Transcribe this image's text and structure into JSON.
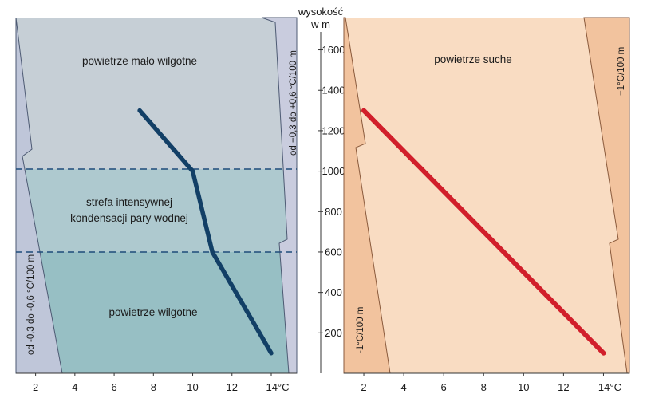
{
  "axis": {
    "y_title": "wysokość",
    "y_unit": "w m",
    "y_ticks": [
      "200",
      "400",
      "600",
      "800",
      "1000",
      "1200",
      "1400",
      "1600"
    ],
    "x_ticks_left": [
      "2",
      "4",
      "6",
      "8",
      "10",
      "12",
      "14°C"
    ],
    "x_ticks_right": [
      "2",
      "4",
      "6",
      "8",
      "10",
      "12",
      "14°C"
    ]
  },
  "left_panel": {
    "label_top": "powietrze mało wilgotne",
    "label_mid_1": "strefa intensywnej",
    "label_mid_2": "kondensacji pary wodnej",
    "label_bottom": "powietrze wilgotne",
    "side_label_left": "od -0,3 do -0,6 °C/100 m",
    "side_label_right": "od +0,3 do +0,6 °C/100 m",
    "colors": {
      "upper": "#c6cfd6",
      "middle": "#aec9cf",
      "lower": "#97bfc4",
      "line": "#123f66",
      "dashed": "#1f4c7a"
    }
  },
  "right_panel": {
    "label": "powietrze suche",
    "side_label_left": "-1°C/100 m",
    "side_label_right": "+1°C/100 m",
    "colors": {
      "fill": "#f9dcc2",
      "strip": "#f2c39e",
      "line": "#d11f2b"
    }
  },
  "chart_data": [
    {
      "type": "line",
      "panel": "left",
      "series": [
        {
          "x": [
            7.3,
            10.0,
            11.0,
            14.0
          ],
          "y": [
            1300,
            1000,
            600,
            100
          ]
        }
      ],
      "dashed_levels": [
        1000,
        600
      ],
      "xlim": [
        1,
        15.3
      ],
      "ylim": [
        0,
        1760
      ]
    },
    {
      "type": "line",
      "panel": "right",
      "series": [
        {
          "x": [
            2.0,
            14.0
          ],
          "y": [
            1300,
            100
          ]
        }
      ],
      "xlim": [
        1,
        15.3
      ],
      "ylim": [
        0,
        1760
      ]
    }
  ]
}
